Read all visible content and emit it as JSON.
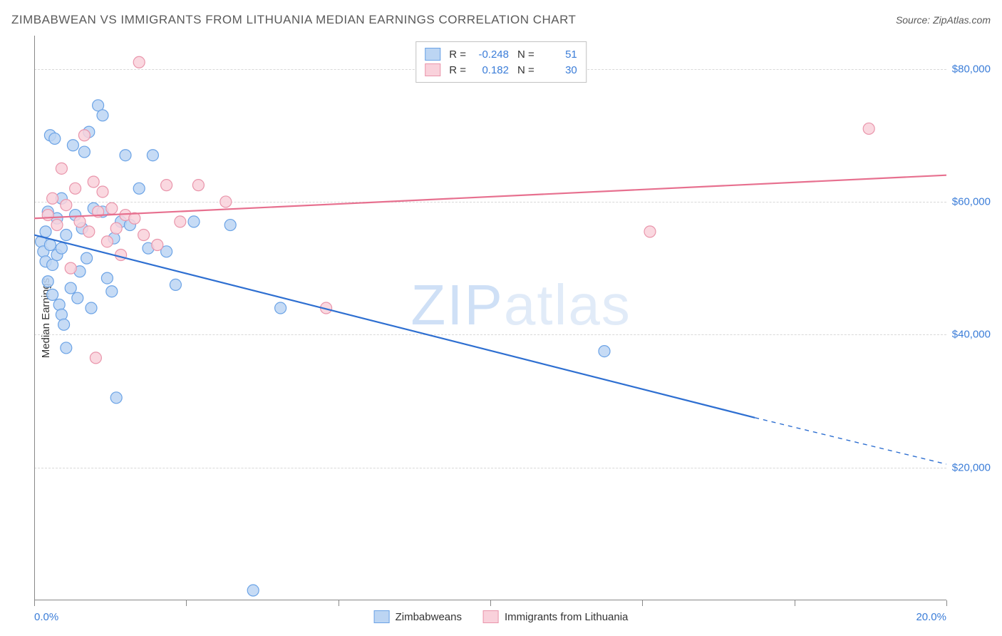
{
  "title": "ZIMBABWEAN VS IMMIGRANTS FROM LITHUANIA MEDIAN EARNINGS CORRELATION CHART",
  "source_label": "Source: ZipAtlas.com",
  "y_axis_label": "Median Earnings",
  "watermark_a": "ZIP",
  "watermark_b": "atlas",
  "chart": {
    "type": "scatter",
    "xlim": [
      0,
      20
    ],
    "ylim": [
      0,
      85000
    ],
    "x_ticks": [
      0,
      3.33,
      6.67,
      10,
      13.33,
      16.67,
      20
    ],
    "x_tick_labels_shown": {
      "0": "0.0%",
      "20": "20.0%"
    },
    "y_ticks": [
      20000,
      40000,
      60000,
      80000
    ],
    "y_tick_labels": [
      "$20,000",
      "$40,000",
      "$60,000",
      "$80,000"
    ],
    "grid_color": "#d8d8d8",
    "axis_color": "#888888",
    "background_color": "#ffffff",
    "label_color": "#3b7dd8",
    "marker_radius": 8,
    "marker_stroke_width": 1.2,
    "line_width": 2.2,
    "series": [
      {
        "name": "Zimbabweans",
        "fill": "#bcd5f3",
        "stroke": "#6ba3e6",
        "line_color": "#2e6fd1",
        "R": "-0.248",
        "N": "51",
        "trend": {
          "x1": 0,
          "y1": 55000,
          "x2": 15.8,
          "y2": 27500,
          "dash_x2": 20,
          "dash_y2": 20500
        },
        "points": [
          [
            0.15,
            54000
          ],
          [
            0.2,
            52500
          ],
          [
            0.25,
            51000
          ],
          [
            0.25,
            55500
          ],
          [
            0.3,
            48000
          ],
          [
            0.3,
            58500
          ],
          [
            0.35,
            70000
          ],
          [
            0.35,
            53500
          ],
          [
            0.4,
            50500
          ],
          [
            0.4,
            46000
          ],
          [
            0.45,
            69500
          ],
          [
            0.5,
            52000
          ],
          [
            0.5,
            57500
          ],
          [
            0.55,
            44500
          ],
          [
            0.6,
            43000
          ],
          [
            0.6,
            60500
          ],
          [
            0.65,
            41500
          ],
          [
            0.7,
            55000
          ],
          [
            0.7,
            38000
          ],
          [
            0.8,
            47000
          ],
          [
            0.85,
            68500
          ],
          [
            0.9,
            58000
          ],
          [
            0.95,
            45500
          ],
          [
            1.0,
            49500
          ],
          [
            1.05,
            56000
          ],
          [
            1.1,
            67500
          ],
          [
            1.15,
            51500
          ],
          [
            1.2,
            70500
          ],
          [
            1.25,
            44000
          ],
          [
            1.3,
            59000
          ],
          [
            1.4,
            74500
          ],
          [
            1.5,
            73000
          ],
          [
            1.5,
            58500
          ],
          [
            1.6,
            48500
          ],
          [
            1.7,
            46500
          ],
          [
            1.75,
            54500
          ],
          [
            1.8,
            30500
          ],
          [
            1.9,
            57000
          ],
          [
            2.0,
            67000
          ],
          [
            2.1,
            56500
          ],
          [
            2.3,
            62000
          ],
          [
            2.5,
            53000
          ],
          [
            2.6,
            67000
          ],
          [
            2.9,
            52500
          ],
          [
            3.1,
            47500
          ],
          [
            3.5,
            57000
          ],
          [
            4.3,
            56500
          ],
          [
            4.8,
            1500
          ],
          [
            5.4,
            44000
          ],
          [
            12.5,
            37500
          ],
          [
            0.6,
            53000
          ]
        ]
      },
      {
        "name": "Immigrants from Lithuania",
        "fill": "#f9d1db",
        "stroke": "#e995ab",
        "line_color": "#e7708f",
        "R": "0.182",
        "N": "30",
        "trend": {
          "x1": 0,
          "y1": 57500,
          "x2": 20,
          "y2": 64000
        },
        "points": [
          [
            0.3,
            58000
          ],
          [
            0.4,
            60500
          ],
          [
            0.5,
            56500
          ],
          [
            0.6,
            65000
          ],
          [
            0.7,
            59500
          ],
          [
            0.8,
            50000
          ],
          [
            0.9,
            62000
          ],
          [
            1.0,
            57000
          ],
          [
            1.1,
            70000
          ],
          [
            1.2,
            55500
          ],
          [
            1.3,
            63000
          ],
          [
            1.35,
            36500
          ],
          [
            1.4,
            58500
          ],
          [
            1.5,
            61500
          ],
          [
            1.6,
            54000
          ],
          [
            1.8,
            56000
          ],
          [
            1.9,
            52000
          ],
          [
            2.0,
            58000
          ],
          [
            2.2,
            57500
          ],
          [
            2.3,
            81000
          ],
          [
            2.4,
            55000
          ],
          [
            2.7,
            53500
          ],
          [
            2.9,
            62500
          ],
          [
            3.2,
            57000
          ],
          [
            3.6,
            62500
          ],
          [
            4.2,
            60000
          ],
          [
            6.4,
            44000
          ],
          [
            13.5,
            55500
          ],
          [
            18.3,
            71000
          ],
          [
            1.7,
            59000
          ]
        ]
      }
    ]
  },
  "legend_top": {
    "R_label": "R =",
    "N_label": "N ="
  },
  "legend_bottom": [
    {
      "label": "Zimbabweans",
      "fill": "#bcd5f3",
      "stroke": "#6ba3e6"
    },
    {
      "label": "Immigrants from Lithuania",
      "fill": "#f9d1db",
      "stroke": "#e995ab"
    }
  ]
}
